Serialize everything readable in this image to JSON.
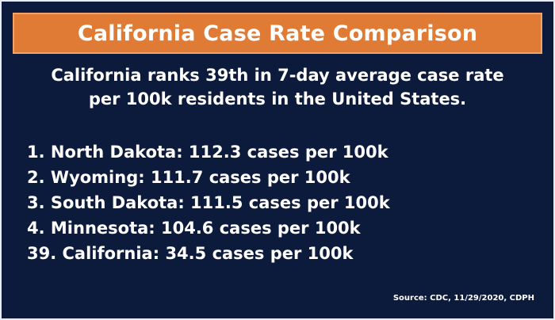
{
  "title": "California Case Rate Comparison",
  "subtitle": {
    "line1": "California ranks 39th in 7-day average case rate",
    "line2": "per 100k residents in the United States."
  },
  "rankings": [
    {
      "text": "1. North Dakota: 112.3 cases per 100k"
    },
    {
      "text": "2. Wyoming: 111.7 cases per 100k"
    },
    {
      "text": "3. South Dakota: 111.5 cases per 100k"
    },
    {
      "text": "4. Minnesota: 104.6 cases per 100k"
    },
    {
      "text": "39. California: 34.5 cases per 100k"
    }
  ],
  "source": "Source: CDC, 11/29/2020, CDPH",
  "colors": {
    "background": "#0c1a3c",
    "title_bar": "#e07b35",
    "text": "#ffffff"
  }
}
